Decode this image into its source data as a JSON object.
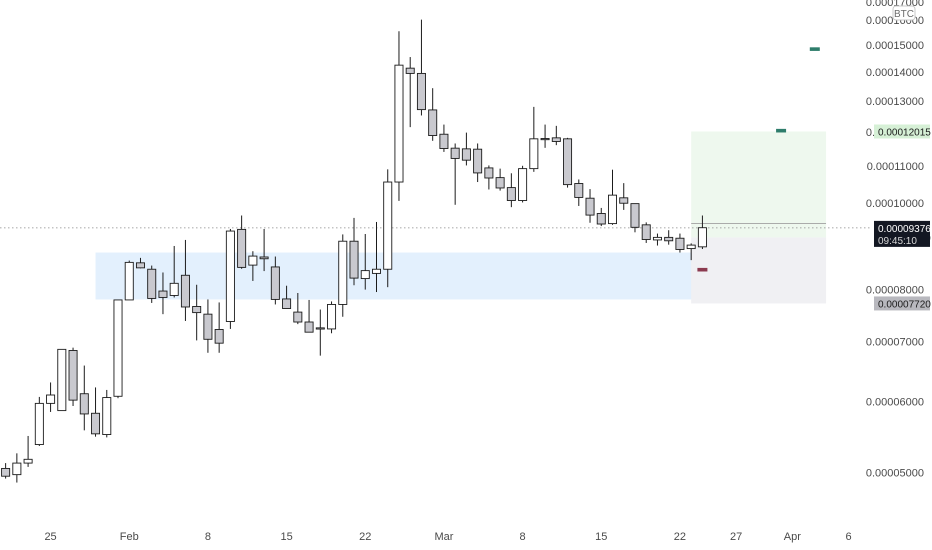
{
  "chart_data": {
    "type": "candlestick",
    "currency": "BTC",
    "price_axis": {
      "ticks": [
        5e-05,
        6e-05,
        7e-05,
        8e-05,
        0.0001,
        0.00011,
        0.00012,
        0.00013,
        0.00014,
        0.00015,
        0.00016
      ],
      "tick_labels": [
        "0.00005000",
        "0.00006000",
        "0.00007000",
        "0.00008000",
        "0.00010000",
        "0.00011000",
        "0.00012000",
        "0.00013000",
        "0.00014000",
        "0.00015000",
        "0.00016000"
      ],
      "top_partial_label": "0.00017000",
      "range": [
        4.48e-05,
        0.0001685
      ],
      "scale": "log"
    },
    "date_axis": {
      "start_day": "2021-01-21",
      "labels": [
        {
          "day": 4,
          "text": "25"
        },
        {
          "day": 11,
          "text": "Feb"
        },
        {
          "day": 18,
          "text": "8"
        },
        {
          "day": 25,
          "text": "15"
        },
        {
          "day": 32,
          "text": "22"
        },
        {
          "day": 39,
          "text": "Mar"
        },
        {
          "day": 46,
          "text": "8"
        },
        {
          "day": 53,
          "text": "15"
        },
        {
          "day": 60,
          "text": "22"
        },
        {
          "day": 65,
          "text": "27"
        },
        {
          "day": 70,
          "text": "Apr"
        },
        {
          "day": 75,
          "text": "6"
        }
      ],
      "range_days": [
        -0.5,
        76.2
      ]
    },
    "candles": [
      {
        "o": 5.05e-05,
        "h": 5.12e-05,
        "l": 4.92e-05,
        "c": 4.95e-05
      },
      {
        "o": 4.97e-05,
        "h": 5.25e-05,
        "l": 4.87e-05,
        "c": 5.12e-05
      },
      {
        "o": 5.12e-05,
        "h": 5.49e-05,
        "l": 5.07e-05,
        "c": 5.17e-05
      },
      {
        "o": 5.37e-05,
        "h": 6.07e-05,
        "l": 5.35e-05,
        "c": 5.97e-05
      },
      {
        "o": 5.97e-05,
        "h": 6.3e-05,
        "l": 5.84e-05,
        "c": 6.1e-05
      },
      {
        "o": 5.86e-05,
        "h": 6.86e-05,
        "l": 5.86e-05,
        "c": 6.86e-05
      },
      {
        "o": 6.84e-05,
        "h": 6.89e-05,
        "l": 5.93e-05,
        "c": 6.02e-05
      },
      {
        "o": 6.12e-05,
        "h": 6.58e-05,
        "l": 5.57e-05,
        "c": 5.81e-05
      },
      {
        "o": 5.82e-05,
        "h": 6.22e-05,
        "l": 5.48e-05,
        "c": 5.52e-05
      },
      {
        "o": 5.51e-05,
        "h": 6.18e-05,
        "l": 5.47e-05,
        "c": 6.06e-05
      },
      {
        "o": 6.08e-05,
        "h": 7.75e-05,
        "l": 6.05e-05,
        "c": 7.79e-05
      },
      {
        "o": 7.79e-05,
        "h": 8.62e-05,
        "l": 7.79e-05,
        "c": 8.58e-05
      },
      {
        "o": 8.57e-05,
        "h": 8.68e-05,
        "l": 8.45e-05,
        "c": 8.46e-05
      },
      {
        "o": 8.43e-05,
        "h": 8.51e-05,
        "l": 7.73e-05,
        "c": 7.82e-05
      },
      {
        "o": 7.97e-05,
        "h": 8.36e-05,
        "l": 7.51e-05,
        "c": 7.84e-05
      },
      {
        "o": 7.88e-05,
        "h": 8.95e-05,
        "l": 7.84e-05,
        "c": 8.13e-05
      },
      {
        "o": 8.3e-05,
        "h": 9.09e-05,
        "l": 7.38e-05,
        "c": 7.65e-05
      },
      {
        "o": 7.66e-05,
        "h": 8.1e-05,
        "l": 7.02e-05,
        "c": 7.54e-05
      },
      {
        "o": 7.51e-05,
        "h": 7.8e-05,
        "l": 6.8e-05,
        "c": 7.04e-05
      },
      {
        "o": 7.22e-05,
        "h": 7.74e-05,
        "l": 6.8e-05,
        "c": 6.97e-05
      },
      {
        "o": 7.37e-05,
        "h": 9.35e-05,
        "l": 7.23e-05,
        "c": 9.3e-05
      },
      {
        "o": 9.34e-05,
        "h": 9.68e-05,
        "l": 8.44e-05,
        "c": 8.47e-05
      },
      {
        "o": 8.52e-05,
        "h": 8.83e-05,
        "l": 8.18e-05,
        "c": 8.72e-05
      },
      {
        "o": 8.7e-05,
        "h": 9.35e-05,
        "l": 8.39e-05,
        "c": 8.66e-05
      },
      {
        "o": 8.48e-05,
        "h": 8.71e-05,
        "l": 7.7e-05,
        "c": 7.8e-05
      },
      {
        "o": 7.81e-05,
        "h": 8.08e-05,
        "l": 7.63e-05,
        "c": 7.62e-05
      },
      {
        "o": 7.55e-05,
        "h": 7.93e-05,
        "l": 7.32e-05,
        "c": 7.36e-05
      },
      {
        "o": 7.36e-05,
        "h": 7.79e-05,
        "l": 7.18e-05,
        "c": 7.17e-05
      },
      {
        "o": 7.25e-05,
        "h": 7.6e-05,
        "l": 6.75e-05,
        "c": 7.23e-05
      },
      {
        "o": 7.23e-05,
        "h": 7.76e-05,
        "l": 7.15e-05,
        "c": 7.7e-05
      },
      {
        "o": 7.7e-05,
        "h": 9.22e-05,
        "l": 7.46e-05,
        "c": 9.06e-05
      },
      {
        "o": 9.06e-05,
        "h": 9.62e-05,
        "l": 8.09e-05,
        "c": 8.24e-05
      },
      {
        "o": 8.23e-05,
        "h": 9.23e-05,
        "l": 8e-05,
        "c": 8.4e-05
      },
      {
        "o": 8.34e-05,
        "h": 9.52e-05,
        "l": 7.95e-05,
        "c": 8.43e-05
      },
      {
        "o": 8.43e-05,
        "h": 0.000109,
        "l": 8.05e-05,
        "c": 0.0001055
      },
      {
        "o": 0.0001055,
        "h": 0.0001555,
        "l": 0.0001005,
        "c": 0.0001425
      },
      {
        "o": 0.0001414,
        "h": 0.0001455,
        "l": 0.0001215,
        "c": 0.0001395
      },
      {
        "o": 0.0001395,
        "h": 0.0001602,
        "l": 0.0001252,
        "c": 0.0001271
      },
      {
        "o": 0.000127,
        "h": 0.0001343,
        "l": 0.0001173,
        "c": 0.0001189
      },
      {
        "o": 0.0001193,
        "h": 0.0001223,
        "l": 0.000114,
        "c": 0.000115
      },
      {
        "o": 0.0001151,
        "h": 0.0001165,
        "l": 9.95e-05,
        "c": 0.0001121
      },
      {
        "o": 0.0001149,
        "h": 0.0001198,
        "l": 0.0001101,
        "c": 0.0001116
      },
      {
        "o": 0.0001148,
        "h": 0.0001165,
        "l": 0.0001055,
        "c": 0.000108
      },
      {
        "o": 0.0001094,
        "h": 0.0001101,
        "l": 0.0001035,
        "c": 0.0001066
      },
      {
        "o": 0.0001067,
        "h": 0.0001092,
        "l": 0.0001032,
        "c": 0.0001039
      },
      {
        "o": 0.000104,
        "h": 0.0001079,
        "l": 9.89e-05,
        "c": 0.0001006
      },
      {
        "o": 0.0001006,
        "h": 0.00011,
        "l": 0.0001001,
        "c": 0.0001092
      },
      {
        "o": 0.0001092,
        "h": 0.000128,
        "l": 0.0001083,
        "c": 0.0001179
      },
      {
        "o": 0.000118,
        "h": 0.0001223,
        "l": 0.0001152,
        "c": 0.0001177
      },
      {
        "o": 0.0001182,
        "h": 0.0001219,
        "l": 0.000116,
        "c": 0.0001171
      },
      {
        "o": 0.0001179,
        "h": 0.0001182,
        "l": 0.000104,
        "c": 0.0001048
      },
      {
        "o": 0.0001051,
        "h": 0.0001062,
        "l": 9.92e-05,
        "c": 0.0001014
      },
      {
        "o": 0.0001012,
        "h": 0.0001036,
        "l": 9.5e-05,
        "c": 9.69e-05
      },
      {
        "o": 9.73e-05,
        "h": 9.87e-05,
        "l": 9.42e-05,
        "c": 9.47e-05
      },
      {
        "o": 9.48e-05,
        "h": 0.0001089,
        "l": 9.45e-05,
        "c": 0.000102
      },
      {
        "o": 0.0001013,
        "h": 0.0001052,
        "l": 9.82e-05,
        "c": 9.99e-05
      },
      {
        "o": 9.98e-05,
        "h": 9.98e-05,
        "l": 9.27e-05,
        "c": 9.39e-05
      },
      {
        "o": 9.45e-05,
        "h": 9.51e-05,
        "l": 9.02e-05,
        "c": 9.1e-05
      },
      {
        "o": 9.09e-05,
        "h": 9.24e-05,
        "l": 8.96e-05,
        "c": 9.15e-05
      },
      {
        "o": 9.15e-05,
        "h": 9.32e-05,
        "l": 8.98e-05,
        "c": 9.07e-05
      },
      {
        "o": 9.13e-05,
        "h": 9.24e-05,
        "l": 8.8e-05,
        "c": 8.87e-05
      },
      {
        "o": 8.89e-05,
        "h": 9.01e-05,
        "l": 8.63e-05,
        "c": 8.97e-05
      },
      {
        "o": 8.93e-05,
        "h": 9.68e-05,
        "l": 8.88e-05,
        "c": 9.38e-05
      }
    ],
    "demand_zone": {
      "from_day": 8,
      "to_day": 64,
      "top": 8.8e-05,
      "bottom": 7.8e-05
    },
    "projection": {
      "from_day": 61,
      "to_day": 73,
      "target": 0.00012015,
      "entry": 9.149e-05,
      "stop": 7.72e-05
    },
    "markers": [
      {
        "day": 62,
        "price": 8.42e-05,
        "color": "#8b3a4f"
      },
      {
        "day": 69,
        "price": 0.0001204,
        "color": "#2e7d6b"
      },
      {
        "day": 72,
        "price": 0.0001485,
        "color": "#2e7d6b"
      }
    ],
    "current_price": 9.376e-05,
    "countdown": "09:45:10",
    "price_badges": [
      {
        "price": 0.00012015,
        "label": "0.00012015",
        "style": "target"
      },
      {
        "price": 9.149e-05,
        "label": "0.00009149",
        "style": "entry"
      },
      {
        "price": 7.72e-05,
        "label": "0.00007720",
        "style": "stop"
      }
    ],
    "current_price_label": "0.00009376",
    "colors": {
      "up_body": "#ffffff",
      "down_body": "#c9c9cf",
      "candle_border": "#1b1b1b",
      "zone_fill": "#e3f0fd",
      "target_fill": "#eef8ee",
      "stop_fill": "#f0f0f3",
      "entry_line": "#a0a0a0",
      "badge_current": "#131722",
      "badge_target": "#d6f0d6",
      "badge_stop": "#b8b8be",
      "badge_entry": "#dcdce2"
    }
  }
}
